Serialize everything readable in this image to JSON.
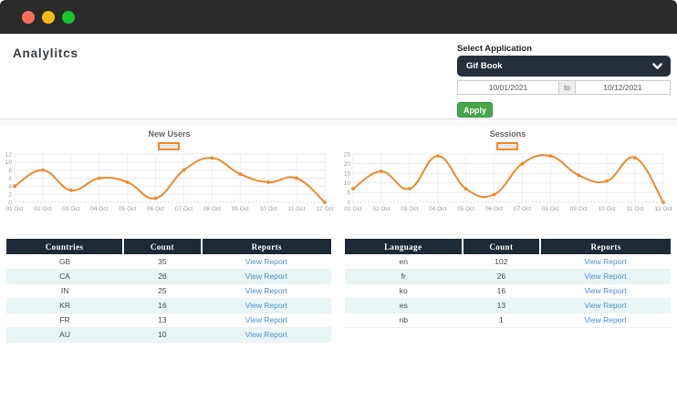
{
  "window": {
    "titlebar_controls": [
      "close",
      "minimize",
      "maximize"
    ]
  },
  "header": {
    "title": "Analylitcs"
  },
  "controls": {
    "select_application_label": "Select Application",
    "application_dropdown": {
      "value": "Gif Book",
      "icon": "chevron-down-icon"
    },
    "date_from": "10/01/2021",
    "date_separator": "to",
    "date_to": "10/12/2021",
    "apply_button": "Apply"
  },
  "colors": {
    "titlebar_bg": "#2b2b2b",
    "traffic_red": "#f96e5b",
    "traffic_yellow": "#f8ba17",
    "traffic_green": "#14c62c",
    "dropdown_bg": "#242f3a",
    "apply_green": "#47a44b",
    "chart_line": "#ee8a2a",
    "table_header_bg": "#1e2a36",
    "table_alt_row": "#e8f6f6",
    "link_blue": "#4a90d2"
  },
  "chart_data": [
    {
      "type": "line",
      "title": "New Users",
      "x": [
        "01 Oct",
        "02 Oct",
        "03 Oct",
        "04 Oct",
        "05 Oct",
        "06 Oct",
        "07 Oct",
        "08 Oct",
        "09 Oct",
        "10 Oct",
        "11 Oct",
        "12 Oct"
      ],
      "series": [
        {
          "name": "",
          "values": [
            4,
            8,
            3,
            6,
            5,
            1,
            8,
            11,
            7,
            5,
            6,
            0
          ]
        }
      ],
      "ylim": [
        0,
        12
      ],
      "yticks": [
        0,
        2,
        4,
        6,
        8,
        10,
        12
      ],
      "line_color": "#ee8a2a",
      "grid": true,
      "legend_position": "top",
      "legend_label": ""
    },
    {
      "type": "line",
      "title": "Sessions",
      "x": [
        "01 Oct",
        "02 Oct",
        "03 Oct",
        "04 Oct",
        "05 Oct",
        "06 Oct",
        "07 Oct",
        "08 Oct",
        "09 Oct",
        "10 Oct",
        "11 Oct",
        "12 Oct"
      ],
      "series": [
        {
          "name": "",
          "values": [
            7,
            16,
            7,
            24,
            7,
            4,
            20,
            24,
            14,
            11,
            23,
            0
          ]
        }
      ],
      "ylim": [
        0,
        25
      ],
      "yticks": [
        0,
        5,
        10,
        15,
        20,
        25
      ],
      "line_color": "#ee8a2a",
      "grid": true,
      "legend_position": "top",
      "legend_label": ""
    }
  ],
  "tables": [
    {
      "columns": [
        "Countries",
        "Count",
        "Reports"
      ],
      "rows": [
        [
          "GB",
          "35"
        ],
        [
          "CA",
          "26"
        ],
        [
          "IN",
          "25"
        ],
        [
          "KR",
          "16"
        ],
        [
          "FR",
          "13"
        ],
        [
          "AU",
          "10"
        ]
      ],
      "link_label": "View Report"
    },
    {
      "columns": [
        "Language",
        "Count",
        "Reports"
      ],
      "rows": [
        [
          "en",
          "102"
        ],
        [
          "fr",
          "26"
        ],
        [
          "ko",
          "16"
        ],
        [
          "es",
          "13"
        ],
        [
          "nb",
          "1"
        ]
      ],
      "link_label": "View Report"
    }
  ]
}
